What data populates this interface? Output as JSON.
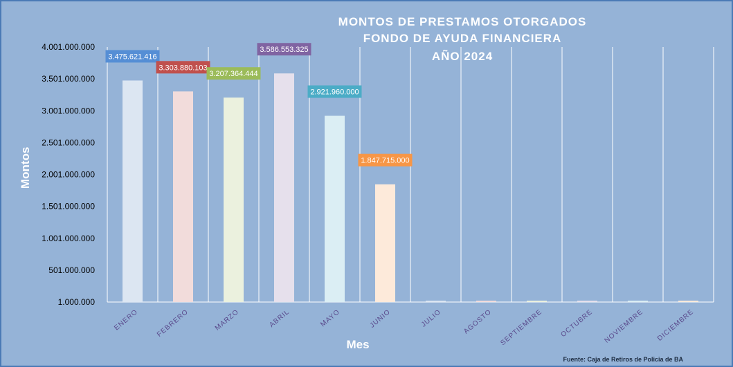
{
  "chart_data": {
    "type": "bar",
    "title_lines": [
      "MONTOS  DE  PRESTAMOS  OTORGADOS",
      "FONDO  DE  AYUDA  FINANCIERA",
      "AÑO  2024"
    ],
    "xlabel": "Mes",
    "ylabel": "Montos",
    "source": "Fuente: Caja de Retiros de Policia de BA",
    "ylim": [
      1000000,
      4001000000
    ],
    "yticks": [
      {
        "value": 1000000,
        "label": "1.000.000"
      },
      {
        "value": 501000000,
        "label": "501.000.000"
      },
      {
        "value": 1001000000,
        "label": "1.001.000.000"
      },
      {
        "value": 1501000000,
        "label": "1.501.000.000"
      },
      {
        "value": 2001000000,
        "label": "2.001.000.000"
      },
      {
        "value": 2501000000,
        "label": "2.501.000.000"
      },
      {
        "value": 3001000000,
        "label": "3.001.000.000"
      },
      {
        "value": 3501000000,
        "label": "3.501.000.000"
      },
      {
        "value": 4001000000,
        "label": "4.001.000.000"
      }
    ],
    "categories": [
      "ENERO",
      "FEBRERO",
      "MARZO",
      "ABRIL",
      "MAYO",
      "JUNIO",
      "JULIO",
      "AGOSTO",
      "SEPTIEMBRE",
      "OCTUBRE",
      "NOVIEMBRE",
      "DICIEMBRE"
    ],
    "values": [
      3475621416,
      3303880103,
      3207364444,
      3586553325,
      2921960000,
      1847715000,
      0,
      0,
      0,
      0,
      0,
      0
    ],
    "data_labels": [
      "3.475.621.416",
      "3.303.880.103",
      "3.207.364.444",
      "3.586.553.325",
      "2.921.960.000",
      "1.847.715.000",
      "",
      "",
      "",
      "",
      "",
      ""
    ],
    "bar_colors": [
      "#dce6f2",
      "#f2dcdb",
      "#ebf1de",
      "#e6e0ec",
      "#dbeef4",
      "#fdeada",
      "#dce6f2",
      "#f2dcdb",
      "#ebf1de",
      "#e6e0ec",
      "#dbeef4",
      "#fdeada"
    ],
    "label_colors": [
      "#558ed5",
      "#c0504d",
      "#9bbb59",
      "#8064a2",
      "#4bacc6",
      "#f79646"
    ],
    "grid": true,
    "legend": "none"
  }
}
